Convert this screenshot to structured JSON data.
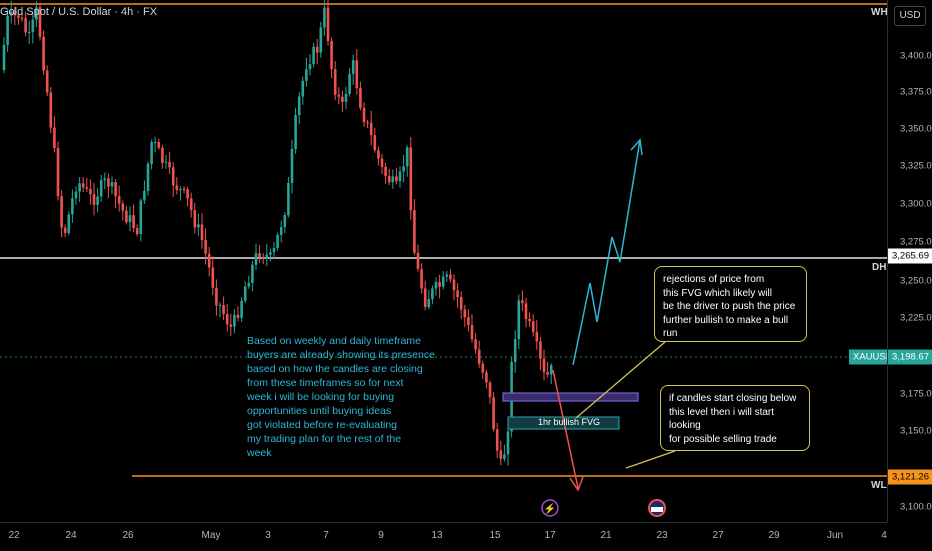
{
  "header": {
    "symbol_title": "Gold Spot / U.S. Dollar · 4h · FX"
  },
  "price_axis": {
    "currency_button": "USD",
    "labels": [
      "3,400.00",
      "3,375.00",
      "3,350.00",
      "3,325.00",
      "3,300.00",
      "3,275.00",
      "3,250.00",
      "3,225.00",
      "3,175.00",
      "3,150.00",
      "3,100.00"
    ],
    "tags": {
      "dh": "3,265.69",
      "current": "3,198.67",
      "wl": "3,121.26"
    }
  },
  "levels": {
    "wh_label": "WH",
    "dh_label": "DH",
    "wl_label": "WL",
    "symbol_tag": "XAUUSD"
  },
  "time_axis": {
    "labels": [
      "22",
      "24",
      "26",
      "May",
      "3",
      "7",
      "9",
      "13",
      "15",
      "17",
      "21",
      "23",
      "27",
      "29",
      "Jun",
      "4"
    ]
  },
  "annotations": {
    "left_note": "Based on weekly and daily timeframe\nbuyers are already showing its presence\nbased on how the candles are closing\nfrom these timeframes so for next\nweek i will be looking for buying\nopportunities until buying ideas\ngot violated before re-evaluating\nmy trading plan for the rest of the\nweek",
    "box1": "rejections of price from\nthis FVG which likely will\nbe the driver to push the price\nfurther bullish to make a bull run",
    "box2": "if candles start closing below\nthis level then i will start looking\nfor possible selling trade",
    "fvg_label": "1hr bullish FVG"
  },
  "colors": {
    "bull": "#26a69a",
    "bear": "#ef5350",
    "orange": "#f7931a",
    "white_line": "#e6e6e6",
    "cyan": "#2fb6d6",
    "purple": "#7b5fd6",
    "fvg_teal": "#2a8f9a",
    "box_border": "#d4c25a"
  }
}
